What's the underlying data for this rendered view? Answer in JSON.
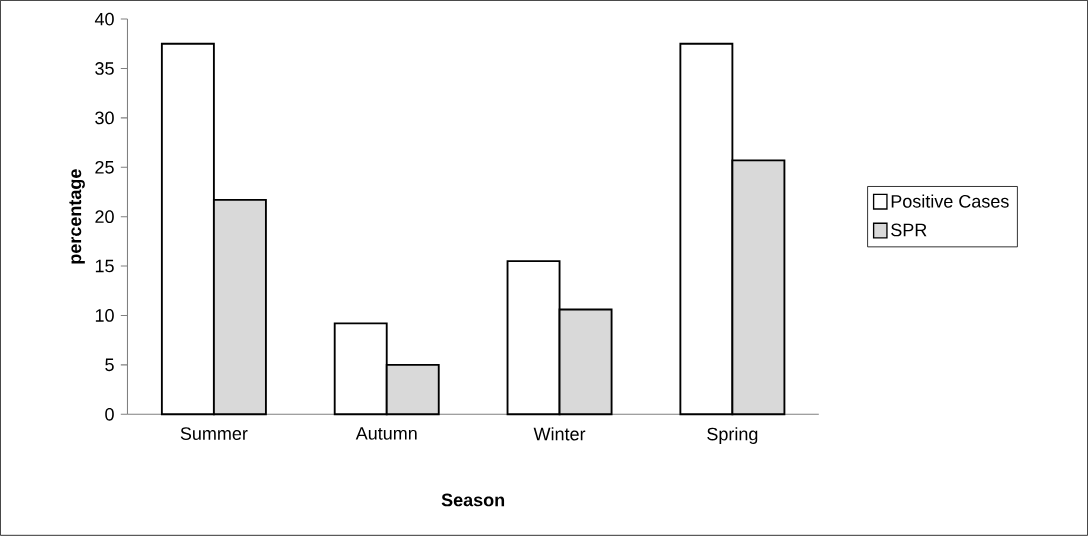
{
  "chart_data": {
    "type": "bar",
    "xlabel": "Season",
    "ylabel": "percentage",
    "categories": [
      "Summer",
      "Autumn",
      "Winter",
      "Spring"
    ],
    "series": [
      {
        "name": "Positive Cases",
        "color": "#ffffff",
        "values": [
          37.5,
          9.2,
          15.5,
          37.5
        ]
      },
      {
        "name": "SPR",
        "color": "#d9d9d9",
        "values": [
          21.7,
          5.0,
          10.6,
          25.7
        ]
      }
    ],
    "ylim": [
      0,
      40
    ],
    "yticks": [
      0,
      5,
      10,
      15,
      20,
      25,
      30,
      35,
      40
    ],
    "grid": false,
    "legend": "right"
  }
}
